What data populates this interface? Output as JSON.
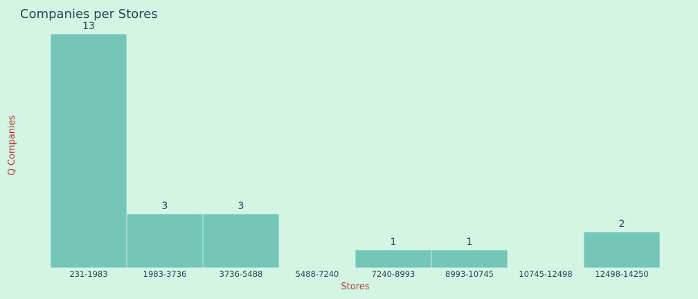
{
  "chart_data": {
    "type": "bar",
    "title": "Companies per Stores",
    "xlabel": "Stores",
    "ylabel": "Q Companies",
    "categories": [
      "231-1983",
      "1983-3736",
      "3736-5488",
      "5488-7240",
      "7240-8993",
      "8993-10745",
      "10745-12498",
      "12498-14250"
    ],
    "values": [
      13,
      3,
      3,
      0,
      1,
      1,
      0,
      2
    ],
    "data_labels": [
      "13",
      "3",
      "3",
      "",
      "1",
      "1",
      "",
      "2"
    ],
    "ylim": [
      0,
      13
    ],
    "grid": false,
    "legend": "none",
    "colors": {
      "background": "#d4f5e3",
      "bar": "#74c6b6",
      "text": "#2a4152",
      "axis_title": "#b23a2a"
    }
  }
}
